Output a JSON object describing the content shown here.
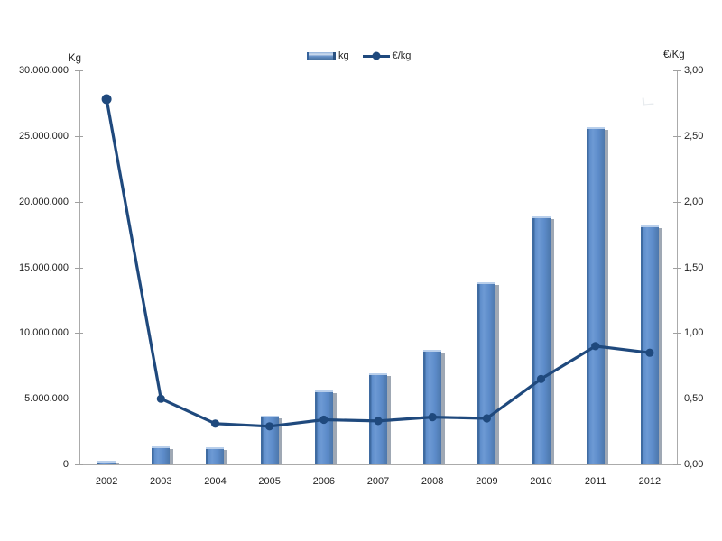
{
  "legend": {
    "items": [
      {
        "label": "kg",
        "type": "bar"
      },
      {
        "label": "€/kg",
        "type": "line"
      }
    ]
  },
  "chart_data": {
    "type": "combo-bar-line",
    "categories": [
      "2002",
      "2003",
      "2004",
      "2005",
      "2006",
      "2007",
      "2008",
      "2009",
      "2010",
      "2011",
      "2012"
    ],
    "series": [
      {
        "name": "kg",
        "type": "bar",
        "axis": "left",
        "values": [
          250000,
          1400000,
          1300000,
          3700000,
          5600000,
          6900000,
          8750000,
          13900000,
          18900000,
          25700000,
          18200000
        ]
      },
      {
        "name": "€/kg",
        "type": "line",
        "axis": "right",
        "values": [
          2.78,
          0.5,
          0.31,
          0.29,
          0.34,
          0.33,
          0.36,
          0.35,
          0.65,
          0.9,
          0.85
        ]
      }
    ],
    "left_axis": {
      "title": "Kg",
      "min": 0,
      "max": 30000000,
      "tick_step": 5000000,
      "tick_labels": [
        "0",
        "5.000.000",
        "10.000.000",
        "15.000.000",
        "20.000.000",
        "25.000.000",
        "30.000.000"
      ]
    },
    "right_axis": {
      "title": "€/Kg",
      "min": 0,
      "max": 3,
      "tick_step": 0.5,
      "tick_labels": [
        "0,00",
        "0,50",
        "1,00",
        "1,50",
        "2,00",
        "2,50",
        "3,00"
      ]
    },
    "grid": false,
    "legend_position": "top-center"
  },
  "colors": {
    "bar_fill": "#5d8cca",
    "bar_edge": "#3f6ba1",
    "bar_cap": "#b9cfeb",
    "bar_shadow": "#9fa8b4",
    "line": "#1f497d",
    "marker": "#1f497d",
    "axis": "#ababab",
    "text": "#1f1f1f",
    "background": "#ffffff"
  }
}
